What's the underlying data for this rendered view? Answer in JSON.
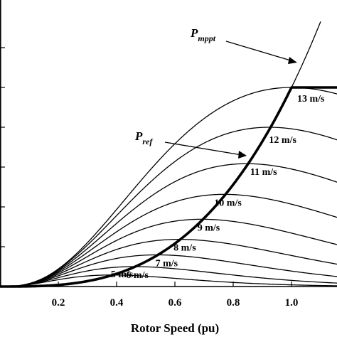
{
  "chart_data": {
    "type": "line",
    "title": "",
    "xlabel": "Rotor Speed (pu)",
    "ylabel": "",
    "xlim": [
      0.0,
      1.28
    ],
    "ylim": [
      0.0,
      1.32
    ],
    "x_ticks": [
      0.2,
      0.4,
      0.6,
      0.8,
      1.0
    ],
    "x_tick_labels": [
      "0.2",
      "0.4",
      "0.6",
      "0.8",
      "1.0"
    ],
    "y_tick_values": [
      0.2,
      0.4,
      0.6,
      0.8,
      1.0,
      1.2
    ],
    "series": [
      {
        "name": "5 m/s",
        "wind_speed": 5,
        "peak": [
          0.385,
          0.058
        ]
      },
      {
        "name": "6 m/s",
        "wind_speed": 6,
        "peak": [
          0.462,
          0.1
        ]
      },
      {
        "name": "7 m/s",
        "wind_speed": 7,
        "peak": [
          0.538,
          0.159
        ]
      },
      {
        "name": "8 m/s",
        "wind_speed": 8,
        "peak": [
          0.615,
          0.237
        ]
      },
      {
        "name": "9 m/s",
        "wind_speed": 9,
        "peak": [
          0.692,
          0.338
        ]
      },
      {
        "name": "10 m/s",
        "wind_speed": 10,
        "peak": [
          0.769,
          0.463
        ]
      },
      {
        "name": "11 m/s",
        "wind_speed": 11,
        "peak": [
          0.846,
          0.617
        ]
      },
      {
        "name": "12 m/s",
        "wind_speed": 12,
        "peak": [
          0.923,
          0.8
        ]
      },
      {
        "name": "13 m/s",
        "wind_speed": 13,
        "peak": [
          1.0,
          1.0
        ]
      }
    ],
    "pmppt_curve": {
      "label_main": "P",
      "label_sub": "mppt",
      "points": [
        [
          0.0,
          0.0
        ],
        [
          0.2,
          0.008
        ],
        [
          0.4,
          0.064
        ],
        [
          0.6,
          0.216
        ],
        [
          0.8,
          0.512
        ],
        [
          1.0,
          1.0
        ],
        [
          1.1,
          1.331
        ]
      ]
    },
    "pref_curve": {
      "label_main": "P",
      "label_sub": "ref",
      "points": [
        [
          0.0,
          0.0
        ],
        [
          0.2,
          0.008
        ],
        [
          0.4,
          0.064
        ],
        [
          0.6,
          0.216
        ],
        [
          0.8,
          0.512
        ],
        [
          0.923,
          0.787
        ],
        [
          0.98,
          0.998
        ],
        [
          1.0,
          1.0
        ],
        [
          1.28,
          1.0
        ]
      ]
    }
  }
}
